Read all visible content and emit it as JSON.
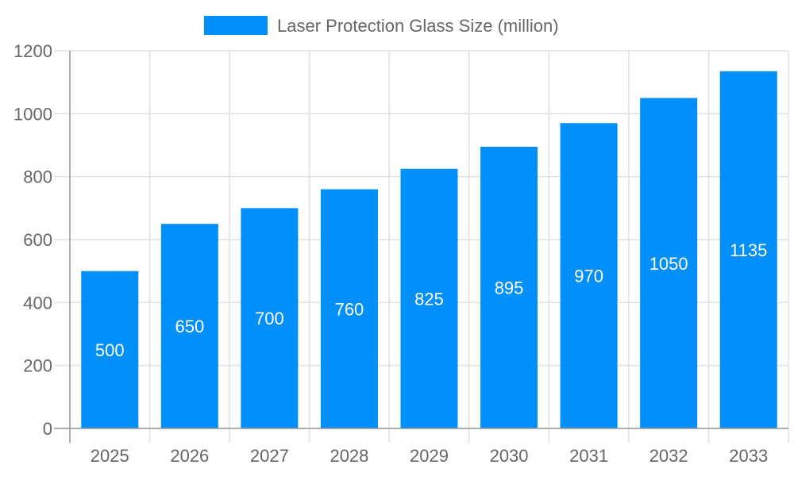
{
  "chart_data": {
    "type": "bar",
    "title": "",
    "xlabel": "",
    "ylabel": "",
    "categories": [
      "2025",
      "2026",
      "2027",
      "2028",
      "2029",
      "2030",
      "2031",
      "2032",
      "2033"
    ],
    "series": [
      {
        "name": "Laser Protection Glass Size (million)",
        "values": [
          500,
          650,
          700,
          760,
          825,
          895,
          970,
          1050,
          1135
        ],
        "color": "#008ffb"
      }
    ],
    "ylim": [
      0,
      1200
    ],
    "yticks": [
      0,
      200,
      400,
      600,
      800,
      1000,
      1200
    ],
    "grid": true,
    "legend": "top-center",
    "data_labels": true,
    "data_label_color": "#ffffff",
    "axis_text_color": "#666666",
    "grid_color": "#e0e0e0"
  }
}
